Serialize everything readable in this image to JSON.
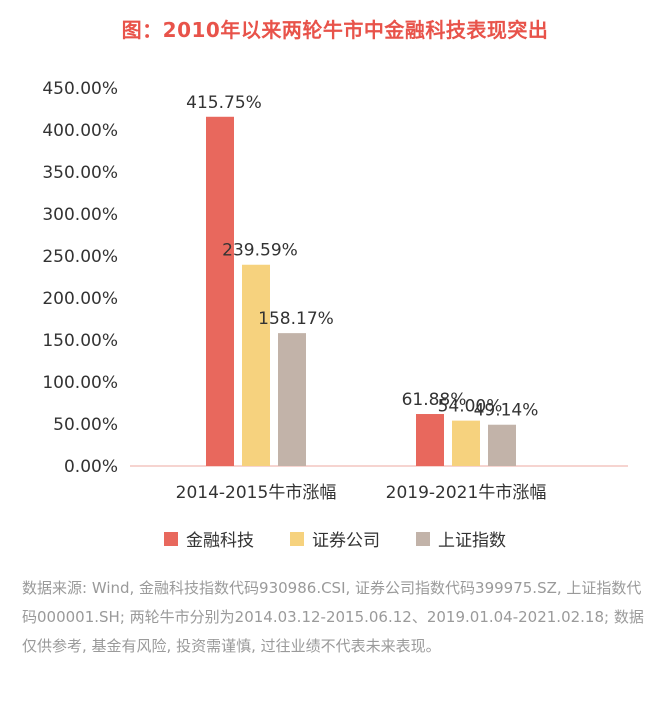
{
  "title": "图：2010年以来两轮牛市中金融科技表现突出",
  "colors": {
    "title": "#e8534a",
    "axis": "#f4c6c0",
    "text": "#333333",
    "note": "#9a9a9a"
  },
  "chart_data": {
    "type": "bar",
    "title": "图：2010年以来两轮牛市中金融科技表现突出",
    "categories": [
      "2014-2015牛市涨幅",
      "2019-2021牛市涨幅"
    ],
    "series": [
      {
        "name": "金融科技",
        "color": "#e8685d",
        "values": [
          415.75,
          61.88
        ],
        "labels": [
          "415.75%",
          "61.88%"
        ]
      },
      {
        "name": "证券公司",
        "color": "#f6d27e",
        "values": [
          239.59,
          54.0
        ],
        "labels": [
          "239.59%",
          "54.00%"
        ]
      },
      {
        "name": "上证指数",
        "color": "#c2b3a9",
        "values": [
          158.17,
          49.14
        ],
        "labels": [
          "158.17%",
          "49.14%"
        ]
      }
    ],
    "yticks": [
      "0.00%",
      "50.00%",
      "100.00%",
      "150.00%",
      "200.00%",
      "250.00%",
      "300.00%",
      "350.00%",
      "400.00%",
      "450.00%"
    ],
    "ylim": [
      0,
      450
    ],
    "grid": false,
    "legend_position": "bottom"
  },
  "legend": [
    "金融科技",
    "证券公司",
    "上证指数"
  ],
  "note": "数据来源: Wind, 金融科技指数代码930986.CSI, 证券公司指数代码399975.SZ, 上证指数代码000001.SH; 两轮牛市分别为2014.03.12-2015.06.12、2019.01.04-2021.02.18; 数据仅供参考, 基金有风险, 投资需谨慎, 过往业绩不代表未来表现。"
}
